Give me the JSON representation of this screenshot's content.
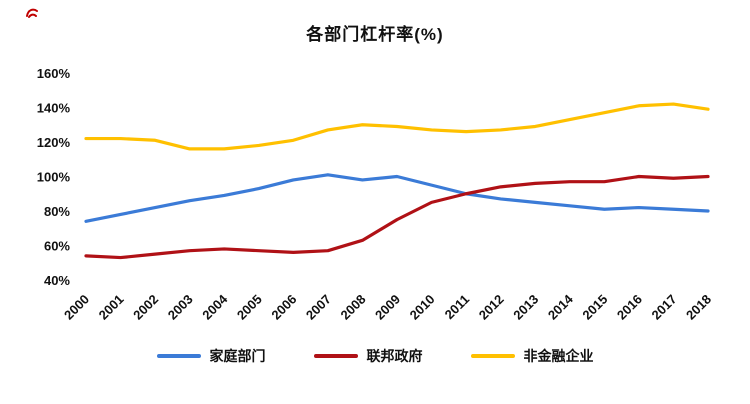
{
  "chart_data": {
    "type": "line",
    "title": "各部门杠杆率(%)",
    "x": [
      2000,
      2001,
      2002,
      2003,
      2004,
      2005,
      2006,
      2007,
      2008,
      2009,
      2010,
      2011,
      2012,
      2013,
      2014,
      2015,
      2016,
      2017,
      2018
    ],
    "series": [
      {
        "name": "家庭部门",
        "color": "#3b7bd7",
        "values": [
          74,
          78,
          82,
          86,
          89,
          93,
          98,
          101,
          98,
          100,
          95,
          90,
          87,
          85,
          83,
          81,
          82,
          81,
          80
        ]
      },
      {
        "name": "联邦政府",
        "color": "#b01116",
        "values": [
          54,
          53,
          55,
          57,
          58,
          57,
          56,
          57,
          63,
          75,
          85,
          90,
          94,
          96,
          97,
          97,
          100,
          99,
          100
        ]
      },
      {
        "name": "非金融企业",
        "color": "#ffc000",
        "values": [
          122,
          122,
          121,
          116,
          116,
          118,
          121,
          127,
          130,
          129,
          127,
          126,
          127,
          129,
          133,
          137,
          141,
          142,
          139
        ]
      }
    ],
    "ylim": [
      40,
      160
    ],
    "y_ticks": [
      40,
      60,
      80,
      100,
      120,
      140,
      160
    ],
    "y_tick_suffix": "%",
    "grid": false,
    "legend_position": "bottom"
  }
}
